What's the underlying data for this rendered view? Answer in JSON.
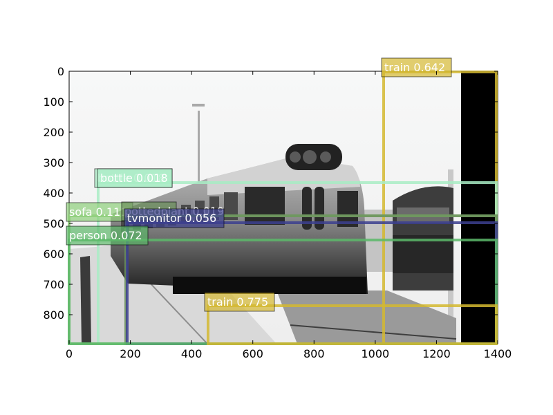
{
  "figure": {
    "x_ticks": [
      "0",
      "200",
      "400",
      "600",
      "800",
      "1000",
      "1200",
      "1400"
    ],
    "y_ticks": [
      "0",
      "100",
      "200",
      "300",
      "400",
      "500",
      "600",
      "700",
      "800"
    ],
    "colors": {
      "train": "#d4b830",
      "bottle": "#a8ecc4",
      "sofa": "#8fcf7a",
      "tvmonitor": "#3c3f8f",
      "person": "#5cb86a",
      "other": "#6a8f5a"
    }
  },
  "detections": [
    {
      "id": "train-1",
      "label": "train 0.642",
      "color": "train"
    },
    {
      "id": "bottle-1",
      "label": "bottle 0.018",
      "color": "bottle"
    },
    {
      "id": "bottle-2",
      "label": "bottle 0.018",
      "color": "bottle"
    },
    {
      "id": "sofa-1",
      "label": "sofa 0.111",
      "color": "sofa"
    },
    {
      "id": "other-1",
      "label": "pottedplant 0.019",
      "color": "other"
    },
    {
      "id": "tvmonitor-1",
      "label": "tvmonitor 0.056",
      "color": "tvmonitor"
    },
    {
      "id": "person-1",
      "label": "person 0.072",
      "color": "person"
    },
    {
      "id": "train-2",
      "label": "train 0.775",
      "color": "train"
    }
  ]
}
